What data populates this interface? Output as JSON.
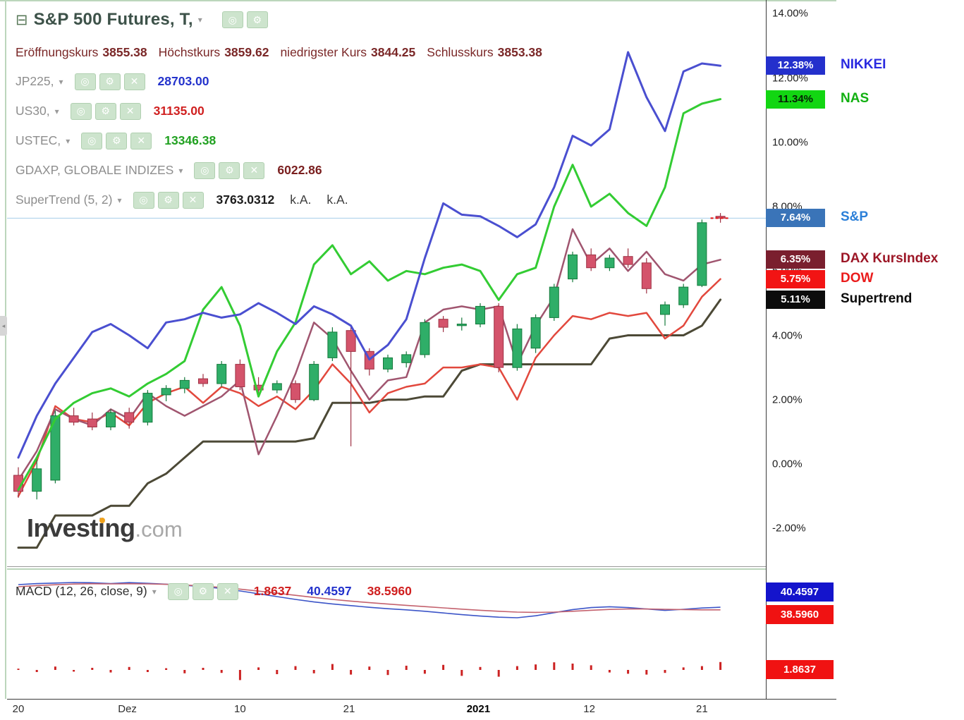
{
  "misc": {
    "scroll_glyph": "◂"
  },
  "colors": {
    "frame_green": "#bcd6bc",
    "current_price_line": "#a7cdea",
    "candle_up": "#2fae68",
    "candle_up_border": "#157a3c",
    "candle_down": "#d4536b",
    "candle_down_border": "#9e3244",
    "last_price_marker": "#e01010"
  },
  "header": {
    "collapse_glyph": "⊟",
    "title": "S&P 500 Futures, T,",
    "dropdown_glyph": "▾",
    "title_icons": [
      {
        "name": "eye-icon",
        "glyph": "◎"
      },
      {
        "name": "gear-icon",
        "glyph": "⚙"
      }
    ],
    "overlay_icons": [
      {
        "name": "eye-icon",
        "glyph": "◎"
      },
      {
        "name": "gear-icon",
        "glyph": "⚙"
      },
      {
        "name": "close-icon",
        "glyph": "✕"
      }
    ],
    "ohlc": [
      {
        "label": "Eröffnungskurs",
        "value": "3855.38"
      },
      {
        "label": "Höchstkurs",
        "value": "3859.62"
      },
      {
        "label": "niedrigster Kurs",
        "value": "3844.25"
      },
      {
        "label": "Schlusskurs",
        "value": "3853.38"
      }
    ],
    "overlays": [
      {
        "id": "jp225",
        "label": "JP225,",
        "value": "28703.00",
        "value_color": "#2433cc"
      },
      {
        "id": "us30",
        "label": "US30,",
        "value": "31135.00",
        "value_color": "#d02020"
      },
      {
        "id": "ustec",
        "label": "USTEC,",
        "value": "13346.38",
        "value_color": "#21a121"
      },
      {
        "id": "gdaxp",
        "label": "GDAXP, GLOBALE INDIZES",
        "value": "6022.86",
        "value_color": "#7a1f1f"
      },
      {
        "id": "supertrend",
        "label": "SuperTrend (5, 2)",
        "value": "3763.0312",
        "value_color": "#1c1c1c",
        "extra": [
          "k.A.",
          "k.A."
        ]
      }
    ]
  },
  "watermark": {
    "brand": "Investing",
    "suffix": ".com",
    "dot_color": "#f0a21c"
  },
  "price_scale": {
    "ticks": [
      {
        "text": "14.00%",
        "value": 14
      },
      {
        "text": "12.00%",
        "value": 12
      },
      {
        "text": "10.00%",
        "value": 10
      },
      {
        "text": "8.00%",
        "value": 8
      },
      {
        "text": "6.00%",
        "value": 6
      },
      {
        "text": "4.00%",
        "value": 4
      },
      {
        "text": "2.00%",
        "value": 2
      },
      {
        "text": "0.00%",
        "value": 0
      },
      {
        "text": "-2.00%",
        "value": -2
      }
    ]
  },
  "price_tags": [
    {
      "series": "nikkei",
      "text": "12.38%",
      "value": 12.38,
      "bg": "#2430cc",
      "fg": "#ffffff"
    },
    {
      "series": "nas",
      "text": "11.34%",
      "value": 11.34,
      "bg": "#12d612",
      "fg": "#062006"
    },
    {
      "series": "sp",
      "text": "7.64%",
      "value": 7.64,
      "bg": "#3a74b8",
      "fg": "#ffffff"
    },
    {
      "series": "dax",
      "text": "6.35%",
      "value": 6.35,
      "bg": "#7a1f2e",
      "fg": "#ffffff"
    },
    {
      "series": "dow",
      "text": "5.75%",
      "value": 5.75,
      "bg": "#f21414",
      "fg": "#ffffff"
    },
    {
      "series": "supertrend",
      "text": "5.11%",
      "value": 5.11,
      "bg": "#0c0c0c",
      "fg": "#ffffff"
    }
  ],
  "index_labels": [
    {
      "text": "NIKKEI",
      "color": "#2a2ae0",
      "value": 12.38
    },
    {
      "text": "NAS",
      "color": "#12b012",
      "value": 11.34
    },
    {
      "text": "S&P",
      "color": "#2b7fd8",
      "value": 7.64
    },
    {
      "text": "DAX KursIndex",
      "color": "#9c1626",
      "value": 6.35
    },
    {
      "text": "DOW",
      "color": "#ea1c1c",
      "value": 5.75
    },
    {
      "text": "Supertrend",
      "color": "#0a0a0a",
      "value": 5.11
    }
  ],
  "macd": {
    "label": "MACD (12, 26, close, 9)",
    "values": [
      {
        "text": "1.8637",
        "color": "#d02020"
      },
      {
        "text": "40.4597",
        "color": "#2433cc"
      },
      {
        "text": "38.5960",
        "color": "#d02020"
      }
    ]
  },
  "macd_tags": [
    {
      "text": "40.4597",
      "bg": "#1414cc"
    },
    {
      "text": "38.5960",
      "bg": "#f01212"
    },
    {
      "text": "1.8637",
      "bg": "#f01212"
    }
  ],
  "chart_data": [
    {
      "type": "candlestick",
      "panel": "main",
      "y_unit": "%",
      "ylim": [
        -3.2,
        14.3
      ],
      "y_ticks": [
        14,
        12,
        10,
        8,
        6,
        4,
        2,
        0,
        -2
      ],
      "grid": false,
      "current_price": 7.64,
      "x_labels": [
        {
          "text": "20",
          "i": 0,
          "bold": false
        },
        {
          "text": "Dez",
          "i": 5.9,
          "bold": false
        },
        {
          "text": "10",
          "i": 12.0,
          "bold": false
        },
        {
          "text": "21",
          "i": 17.9,
          "bold": false
        },
        {
          "text": "2021",
          "i": 24.9,
          "bold": true
        },
        {
          "text": "12",
          "i": 30.9,
          "bold": false
        },
        {
          "text": "21",
          "i": 37.0,
          "bold": false
        }
      ],
      "candles": [
        [
          -0.35,
          -0.1,
          -1.05,
          -0.85
        ],
        [
          -0.85,
          0.15,
          -1.1,
          -0.15
        ],
        [
          -0.5,
          1.65,
          -0.6,
          1.5
        ],
        [
          1.5,
          1.75,
          1.2,
          1.3
        ],
        [
          1.4,
          1.6,
          1.05,
          1.15
        ],
        [
          1.15,
          1.7,
          1.05,
          1.6
        ],
        [
          1.6,
          1.75,
          1.1,
          1.3
        ],
        [
          1.3,
          2.3,
          1.2,
          2.2
        ],
        [
          2.15,
          2.45,
          1.95,
          2.35
        ],
        [
          2.35,
          2.7,
          2.2,
          2.6
        ],
        [
          2.65,
          2.8,
          2.4,
          2.5
        ],
        [
          2.5,
          3.2,
          2.4,
          3.1
        ],
        [
          3.1,
          3.25,
          2.3,
          2.4
        ],
        [
          2.45,
          2.7,
          2.2,
          2.3
        ],
        [
          2.3,
          2.6,
          2.2,
          2.5
        ],
        [
          2.5,
          2.6,
          1.9,
          2.0
        ],
        [
          2.0,
          3.2,
          1.95,
          3.1
        ],
        [
          3.3,
          4.25,
          3.2,
          4.1
        ],
        [
          4.15,
          4.3,
          0.55,
          3.5
        ],
        [
          3.5,
          3.6,
          2.75,
          2.95
        ],
        [
          2.95,
          3.4,
          2.85,
          3.3
        ],
        [
          3.15,
          3.5,
          3.0,
          3.4
        ],
        [
          3.4,
          4.5,
          3.3,
          4.4
        ],
        [
          4.5,
          4.6,
          4.1,
          4.25
        ],
        [
          4.3,
          4.55,
          4.15,
          4.35
        ],
        [
          4.35,
          5.0,
          4.25,
          4.9
        ],
        [
          4.9,
          5.0,
          2.85,
          3.0
        ],
        [
          3.0,
          4.35,
          2.9,
          4.2
        ],
        [
          3.6,
          4.65,
          3.45,
          4.55
        ],
        [
          4.55,
          5.6,
          4.45,
          5.5
        ],
        [
          5.75,
          6.6,
          5.65,
          6.5
        ],
        [
          6.5,
          6.7,
          6.0,
          6.1
        ],
        [
          6.1,
          6.5,
          6.0,
          6.4
        ],
        [
          6.45,
          6.7,
          6.1,
          6.2
        ],
        [
          6.25,
          6.4,
          5.3,
          5.45
        ],
        [
          4.65,
          5.05,
          4.3,
          4.95
        ],
        [
          4.95,
          5.6,
          4.85,
          5.5
        ],
        [
          5.55,
          7.6,
          5.5,
          7.5
        ],
        [
          7.7,
          7.8,
          7.5,
          7.64
        ]
      ],
      "series": [
        {
          "name": "NIKKEI",
          "color": "#4a4fd0",
          "width": 3,
          "last": 12.38,
          "values": [
            0.2,
            1.5,
            2.5,
            3.3,
            4.1,
            4.35,
            4.0,
            3.6,
            4.4,
            4.5,
            4.7,
            4.55,
            4.65,
            5.0,
            4.7,
            4.35,
            4.9,
            4.65,
            4.3,
            3.25,
            3.7,
            4.5,
            6.4,
            8.1,
            7.75,
            7.7,
            7.4,
            7.05,
            7.45,
            8.6,
            10.2,
            9.9,
            10.4,
            12.8,
            11.4,
            10.35,
            12.2,
            12.45,
            12.38
          ]
        },
        {
          "name": "NAS",
          "color": "#33cc33",
          "width": 3,
          "last": 11.34,
          "values": [
            -0.8,
            0.2,
            1.4,
            1.9,
            2.2,
            2.35,
            2.1,
            2.5,
            2.8,
            3.2,
            4.8,
            5.5,
            4.3,
            2.1,
            3.5,
            4.4,
            6.2,
            6.8,
            5.9,
            6.3,
            5.7,
            6.0,
            5.9,
            6.1,
            6.2,
            6.0,
            5.1,
            5.9,
            6.1,
            8.0,
            9.3,
            8.0,
            8.4,
            7.8,
            7.4,
            8.6,
            10.9,
            11.2,
            11.34
          ]
        },
        {
          "name": "DAX KursIndex",
          "color": "#a0556f",
          "width": 2.5,
          "last": 6.35,
          "values": [
            -0.5,
            0.4,
            1.7,
            1.4,
            1.2,
            1.7,
            1.4,
            2.2,
            1.8,
            1.5,
            1.8,
            2.1,
            2.6,
            0.3,
            1.5,
            2.8,
            4.4,
            3.9,
            2.9,
            2.0,
            2.6,
            2.7,
            4.4,
            4.8,
            4.9,
            4.8,
            4.9,
            3.1,
            4.3,
            5.2,
            7.3,
            6.2,
            6.7,
            6.0,
            6.6,
            5.9,
            5.7,
            6.2,
            6.35
          ]
        },
        {
          "name": "DOW",
          "color": "#e2483d",
          "width": 2.5,
          "last": 5.75,
          "values": [
            -1.0,
            0.1,
            1.8,
            1.4,
            1.3,
            1.6,
            1.2,
            1.9,
            2.2,
            2.4,
            1.9,
            2.4,
            2.2,
            1.8,
            2.1,
            1.7,
            2.3,
            3.1,
            2.5,
            1.6,
            2.2,
            2.4,
            2.5,
            3.0,
            3.0,
            3.1,
            3.0,
            2.0,
            3.3,
            4.0,
            4.6,
            4.5,
            4.7,
            4.6,
            4.7,
            3.9,
            4.3,
            5.2,
            5.75
          ]
        },
        {
          "name": "Supertrend",
          "color": "#4c4936",
          "width": 3,
          "last": 5.11,
          "values": [
            -2.6,
            -2.6,
            -1.6,
            -1.6,
            -1.6,
            -1.3,
            -1.3,
            -0.6,
            -0.3,
            0.2,
            0.7,
            0.7,
            0.7,
            0.7,
            0.7,
            0.7,
            0.8,
            1.9,
            1.9,
            1.9,
            2.0,
            2.0,
            2.1,
            2.1,
            2.9,
            3.1,
            3.1,
            3.1,
            3.1,
            3.1,
            3.1,
            3.1,
            3.9,
            4.0,
            4.0,
            4.0,
            4.0,
            4.3,
            5.11
          ]
        }
      ]
    },
    {
      "type": "line+histogram",
      "panel": "macd",
      "title": "MACD (12, 26, close, 9)",
      "readouts": [
        "1.8637",
        "40.4597",
        "38.5960"
      ],
      "series": [
        {
          "name": "MACD",
          "color": "#3c55c8",
          "width": 1.6,
          "values": [
            56.5,
            57.2,
            57.6,
            58.0,
            57.8,
            57.2,
            57.9,
            57.4,
            56.8,
            56.0,
            55.0,
            53.8,
            52.0,
            50.0,
            48.0,
            46.0,
            44.2,
            42.8,
            41.6,
            40.4,
            39.4,
            38.6,
            37.6,
            36.4,
            35.2,
            34.2,
            33.4,
            33.0,
            34.4,
            36.6,
            38.8,
            40.2,
            40.8,
            40.2,
            39.2,
            38.2,
            39.0,
            39.9,
            40.46
          ]
        },
        {
          "name": "Signal",
          "color": "#c4626e",
          "width": 1.6,
          "values": [
            55.0,
            55.8,
            56.4,
            56.9,
            57.1,
            57.0,
            57.1,
            57.0,
            56.7,
            56.2,
            55.5,
            54.5,
            53.3,
            51.9,
            50.4,
            48.9,
            47.4,
            46.0,
            44.8,
            43.7,
            42.7,
            41.8,
            40.9,
            40.0,
            39.1,
            38.3,
            37.6,
            37.0,
            36.8,
            37.0,
            37.6,
            38.3,
            38.9,
            39.2,
            39.2,
            39.0,
            38.8,
            38.6,
            38.6
          ]
        }
      ],
      "histogram": {
        "color": "#cc2222",
        "values": [
          0.3,
          -0.5,
          0.8,
          -0.4,
          0.5,
          -0.6,
          0.7,
          -0.5,
          0.4,
          -0.8,
          0.5,
          -0.7,
          -2.4,
          0.6,
          -1.0,
          0.9,
          -0.8,
          1.4,
          -1.1,
          0.8,
          -1.2,
          1.0,
          -0.9,
          1.2,
          -1.4,
          0.7,
          -1.6,
          0.9,
          1.3,
          1.8,
          1.5,
          1.1,
          -0.6,
          -0.9,
          -1.1,
          -0.7,
          0.6,
          0.9,
          1.86
        ]
      }
    }
  ]
}
